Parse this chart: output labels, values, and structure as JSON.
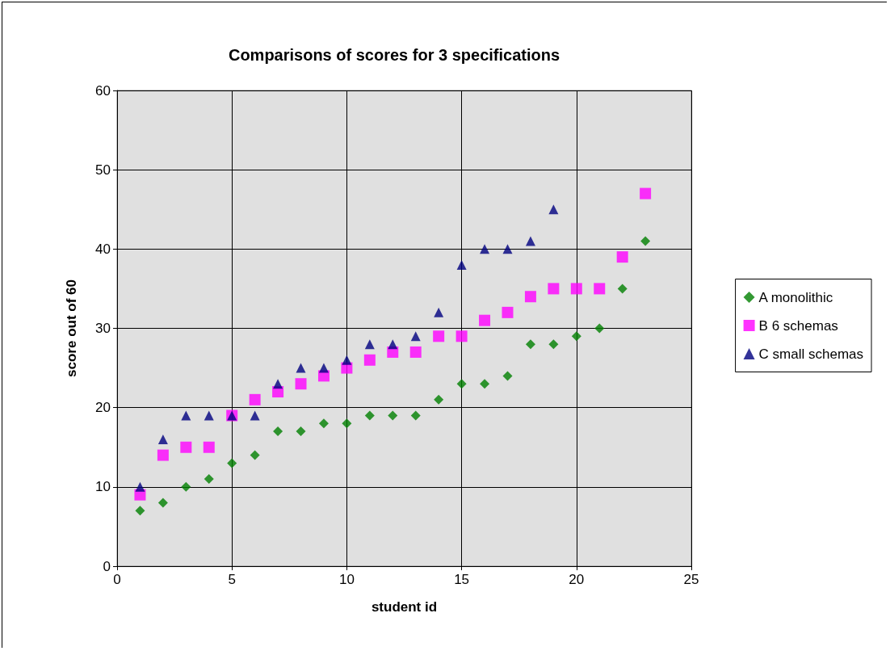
{
  "chart_data": {
    "type": "scatter",
    "title": "Comparisons of scores for 3 specifications",
    "xlabel": "student id",
    "ylabel": "score out of 60",
    "x": [
      1,
      2,
      3,
      4,
      5,
      6,
      7,
      8,
      9,
      10,
      11,
      12,
      13,
      14,
      15,
      16,
      17,
      18,
      19,
      20,
      21,
      22,
      23
    ],
    "series": [
      {
        "name": "A monolithic",
        "color": "#008000",
        "marker": "diamond",
        "values": [
          7,
          8,
          10,
          11,
          13,
          14,
          17,
          17,
          18,
          18,
          19,
          19,
          19,
          21,
          23,
          23,
          24,
          28,
          28,
          29,
          30,
          35,
          41
        ]
      },
      {
        "name": "B 6 schemas",
        "color": "#ff00ff",
        "marker": "square",
        "values": [
          9,
          14,
          15,
          15,
          19,
          21,
          22,
          23,
          24,
          25,
          26,
          27,
          27,
          29,
          29,
          31,
          32,
          34,
          35,
          35,
          35,
          39,
          47
        ]
      },
      {
        "name": "C small schemas",
        "color": "#000080",
        "marker": "triangle",
        "values": [
          10,
          16,
          19,
          19,
          19,
          19,
          23,
          25,
          25,
          26,
          28,
          28,
          29,
          32,
          38,
          40,
          40,
          41,
          45,
          null,
          null,
          null,
          null
        ]
      }
    ],
    "xlim": [
      0,
      25
    ],
    "xticks": [
      0,
      5,
      10,
      15,
      20,
      25
    ],
    "ylim": [
      0,
      60
    ],
    "yticks": [
      0,
      10,
      20,
      30,
      40,
      50,
      60
    ],
    "grid": true,
    "legend": "right"
  }
}
